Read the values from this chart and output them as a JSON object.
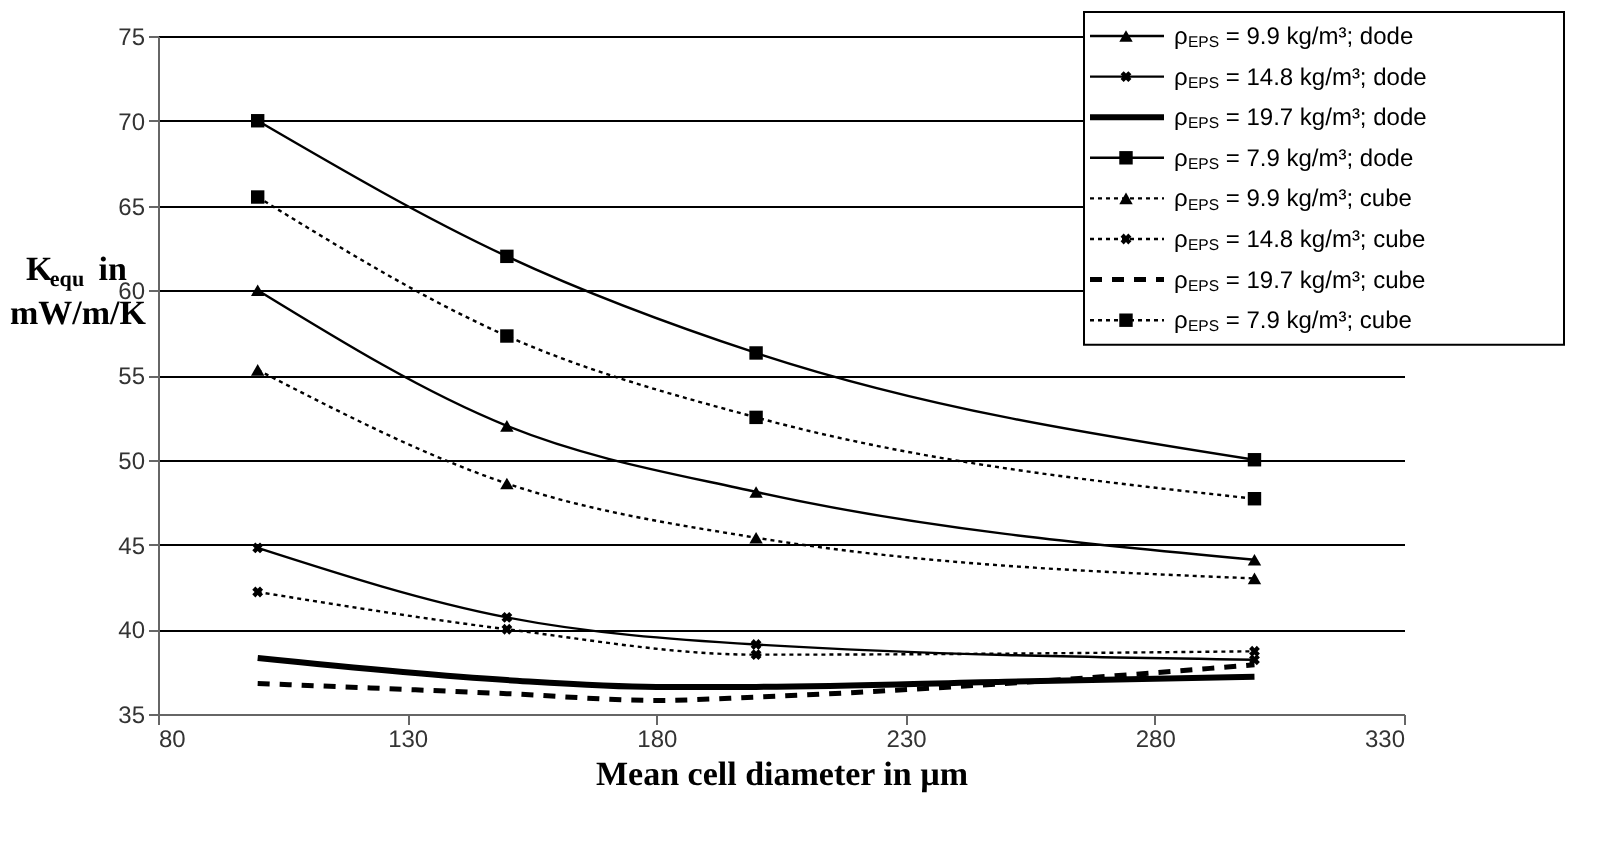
{
  "chart_data": {
    "type": "line",
    "xlabel": "Mean cell diameter in µm",
    "ylabel": "K$_{equ}$ in mW/m/K",
    "xlim": [
      80,
      330
    ],
    "xticks": [
      80,
      130,
      180,
      230,
      280,
      330
    ],
    "ylim": [
      35,
      75
    ],
    "yticks": [
      35,
      40,
      45,
      50,
      55,
      60,
      65,
      70,
      75
    ],
    "grid": "y",
    "legend": "top right",
    "series": [
      {
        "name": "ρ$_{EPS}$ = 9.9 kg/m³; dode",
        "color": "#000000",
        "marker": "triangle",
        "line_style": "solid",
        "x": [
          100,
          150,
          200,
          300
        ],
        "values": [
          60,
          52,
          48.1,
          44.1
        ]
      },
      {
        "name": "ρ$_{EPS}$ = 14.8 kg/m³; dode",
        "color": "#000000",
        "marker": "cross",
        "line_style": "solid",
        "x": [
          100,
          150,
          200,
          300
        ],
        "values": [
          44.8,
          40.7,
          39.1,
          38.2
        ]
      },
      {
        "name": "ρ$_{EPS}$ = 19.7 kg/m³; dode",
        "color": "#000000",
        "marker": "none",
        "line_style": "solid",
        "x": [
          100,
          150,
          180,
          200,
          250,
          300
        ],
        "values": [
          38.3,
          37.0,
          36.6,
          36.6,
          36.9,
          37.2
        ]
      },
      {
        "name": "ρ$_{EPS}$ = 7.9 kg/m³; dode",
        "color": "#000000",
        "marker": "square",
        "line_style": "solid",
        "x": [
          100,
          150,
          200,
          300
        ],
        "values": [
          70,
          62,
          56.3,
          50
        ]
      },
      {
        "name": "ρ$_{EPS}$ = 9.9 kg/m³; cube",
        "color": "#000000",
        "marker": "triangle",
        "line_style": "dotted",
        "x": [
          100,
          150,
          200,
          300
        ],
        "values": [
          55.3,
          48.6,
          45.4,
          43.0
        ]
      },
      {
        "name": "ρ$_{EPS}$ = 14.8 kg/m³; cube",
        "color": "#000000",
        "marker": "cross",
        "line_style": "dotted",
        "x": [
          100,
          150,
          200,
          300
        ],
        "values": [
          42.2,
          40.0,
          38.5,
          38.7
        ]
      },
      {
        "name": "ρ$_{EPS}$ = 19.7 kg/m³; cube",
        "color": "#000000",
        "marker": "none",
        "line_style": "dashed",
        "x": [
          100,
          150,
          180,
          200,
          250,
          300
        ],
        "values": [
          36.8,
          36.2,
          35.8,
          36.0,
          36.8,
          37.9
        ]
      },
      {
        "name": "ρ$_{EPS}$ = 7.9 kg/m³; cube",
        "color": "#000000",
        "marker": "square",
        "line_style": "dotted",
        "x": [
          100,
          150,
          200,
          300
        ],
        "values": [
          65.5,
          57.3,
          52.5,
          47.7
        ]
      }
    ]
  }
}
